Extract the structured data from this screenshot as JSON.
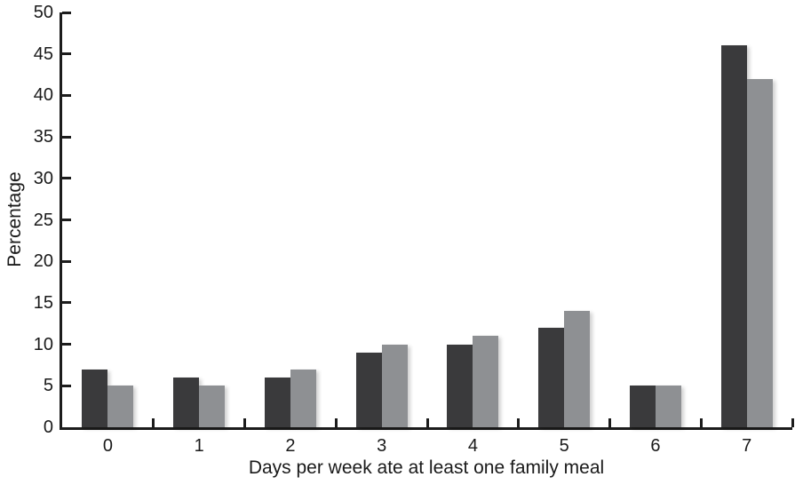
{
  "figure": {
    "background": "#ffffff",
    "axis_color": "#1c1c1c",
    "text_color": "#1a1a1a"
  },
  "chart_data": {
    "type": "bar",
    "title": "",
    "xlabel": "Days per week ate at least one family meal",
    "ylabel": "Percentage",
    "categories": [
      "0",
      "1",
      "2",
      "3",
      "4",
      "5",
      "6",
      "7"
    ],
    "series": [
      {
        "name": "dark",
        "color": "#3a3a3c",
        "values": [
          7,
          6,
          6,
          9,
          10,
          12,
          5,
          46
        ]
      },
      {
        "name": "light",
        "color": "#8e9093",
        "values": [
          5,
          5,
          7,
          10,
          11,
          14,
          5,
          42
        ]
      }
    ],
    "ylim": [
      0,
      50
    ],
    "yticks": [
      0,
      5,
      10,
      15,
      20,
      25,
      30,
      35,
      40,
      45,
      50
    ],
    "grid": false,
    "legend": null
  }
}
